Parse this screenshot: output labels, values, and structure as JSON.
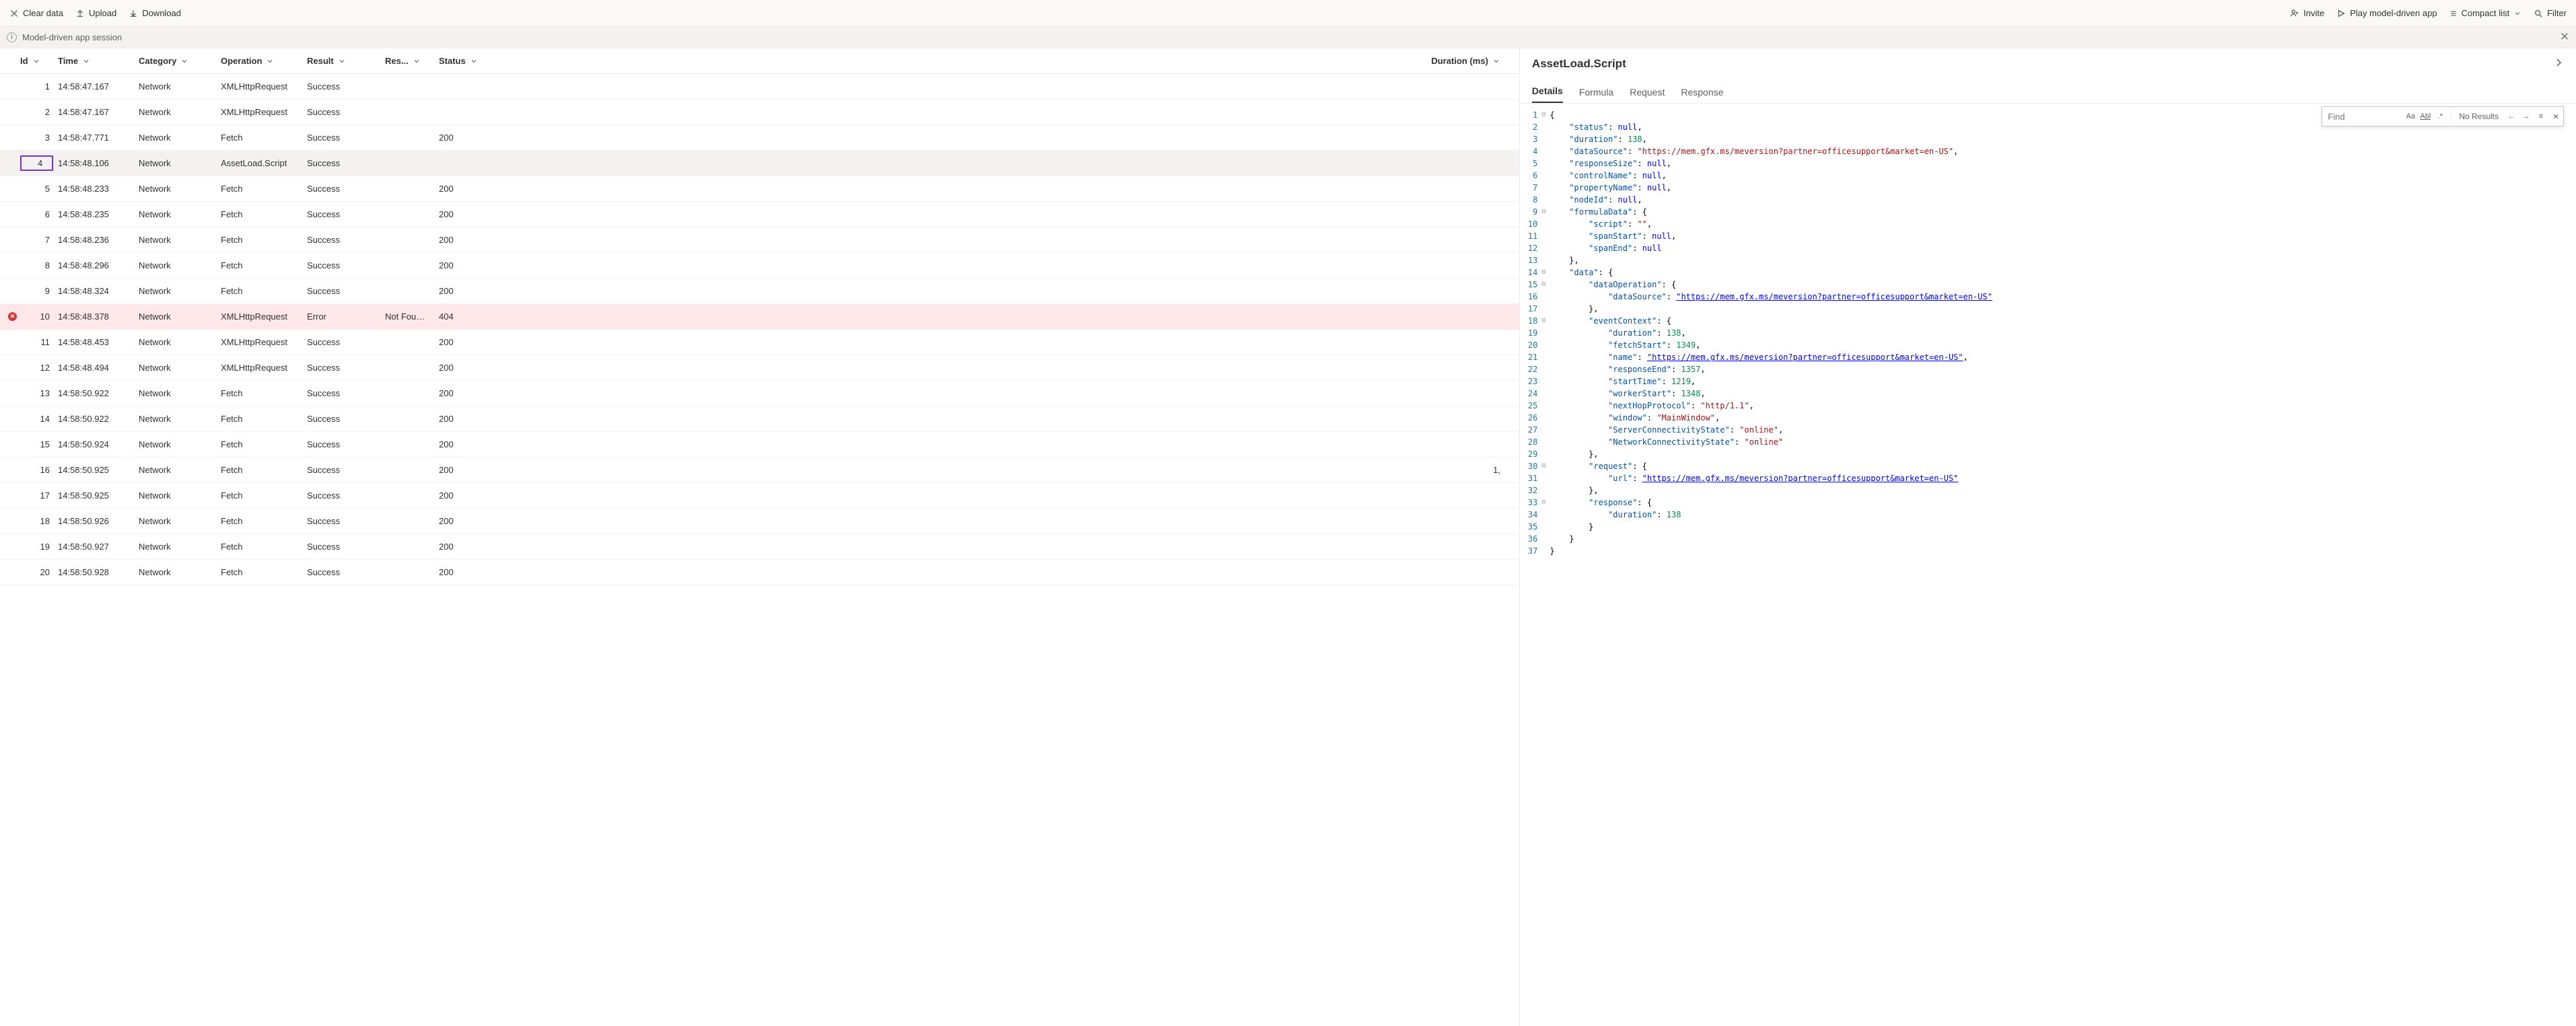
{
  "toolbar": {
    "clear": "Clear data",
    "upload": "Upload",
    "download": "Download",
    "invite": "Invite",
    "play": "Play model-driven app",
    "compact": "Compact list",
    "filter": "Filter"
  },
  "session": {
    "title": "Model-driven app session"
  },
  "columns": {
    "id": "Id",
    "time": "Time",
    "category": "Category",
    "operation": "Operation",
    "result": "Result",
    "res2": "Res...",
    "status": "Status",
    "duration": "Duration (ms)"
  },
  "rows": [
    {
      "id": "1",
      "time": "14:58:47.167",
      "cat": "Network",
      "op": "XMLHttpRequest",
      "res": "Success",
      "res2": "",
      "stat": "",
      "dur": ""
    },
    {
      "id": "2",
      "time": "14:58:47.167",
      "cat": "Network",
      "op": "XMLHttpRequest",
      "res": "Success",
      "res2": "",
      "stat": "",
      "dur": ""
    },
    {
      "id": "3",
      "time": "14:58:47.771",
      "cat": "Network",
      "op": "Fetch",
      "res": "Success",
      "res2": "",
      "stat": "200",
      "dur": ""
    },
    {
      "id": "4",
      "time": "14:58:48.106",
      "cat": "Network",
      "op": "AssetLoad.Script",
      "res": "Success",
      "res2": "",
      "stat": "",
      "dur": "",
      "selected": true
    },
    {
      "id": "5",
      "time": "14:58:48.233",
      "cat": "Network",
      "op": "Fetch",
      "res": "Success",
      "res2": "",
      "stat": "200",
      "dur": ""
    },
    {
      "id": "6",
      "time": "14:58:48.235",
      "cat": "Network",
      "op": "Fetch",
      "res": "Success",
      "res2": "",
      "stat": "200",
      "dur": ""
    },
    {
      "id": "7",
      "time": "14:58:48.236",
      "cat": "Network",
      "op": "Fetch",
      "res": "Success",
      "res2": "",
      "stat": "200",
      "dur": ""
    },
    {
      "id": "8",
      "time": "14:58:48.296",
      "cat": "Network",
      "op": "Fetch",
      "res": "Success",
      "res2": "",
      "stat": "200",
      "dur": ""
    },
    {
      "id": "9",
      "time": "14:58:48.324",
      "cat": "Network",
      "op": "Fetch",
      "res": "Success",
      "res2": "",
      "stat": "200",
      "dur": ""
    },
    {
      "id": "10",
      "time": "14:58:48.378",
      "cat": "Network",
      "op": "XMLHttpRequest",
      "res": "Error",
      "res2": "Not Fou…",
      "stat": "404",
      "dur": "",
      "error": true
    },
    {
      "id": "11",
      "time": "14:58:48.453",
      "cat": "Network",
      "op": "XMLHttpRequest",
      "res": "Success",
      "res2": "",
      "stat": "200",
      "dur": ""
    },
    {
      "id": "12",
      "time": "14:58:48.494",
      "cat": "Network",
      "op": "XMLHttpRequest",
      "res": "Success",
      "res2": "",
      "stat": "200",
      "dur": ""
    },
    {
      "id": "13",
      "time": "14:58:50.922",
      "cat": "Network",
      "op": "Fetch",
      "res": "Success",
      "res2": "",
      "stat": "200",
      "dur": ""
    },
    {
      "id": "14",
      "time": "14:58:50.922",
      "cat": "Network",
      "op": "Fetch",
      "res": "Success",
      "res2": "",
      "stat": "200",
      "dur": ""
    },
    {
      "id": "15",
      "time": "14:58:50.924",
      "cat": "Network",
      "op": "Fetch",
      "res": "Success",
      "res2": "",
      "stat": "200",
      "dur": ""
    },
    {
      "id": "16",
      "time": "14:58:50.925",
      "cat": "Network",
      "op": "Fetch",
      "res": "Success",
      "res2": "",
      "stat": "200",
      "dur": "1,"
    },
    {
      "id": "17",
      "time": "14:58:50.925",
      "cat": "Network",
      "op": "Fetch",
      "res": "Success",
      "res2": "",
      "stat": "200",
      "dur": ""
    },
    {
      "id": "18",
      "time": "14:58:50.926",
      "cat": "Network",
      "op": "Fetch",
      "res": "Success",
      "res2": "",
      "stat": "200",
      "dur": ""
    },
    {
      "id": "19",
      "time": "14:58:50.927",
      "cat": "Network",
      "op": "Fetch",
      "res": "Success",
      "res2": "",
      "stat": "200",
      "dur": ""
    },
    {
      "id": "20",
      "time": "14:58:50.928",
      "cat": "Network",
      "op": "Fetch",
      "res": "Success",
      "res2": "",
      "stat": "200",
      "dur": ""
    }
  ],
  "details": {
    "title": "AssetLoad.Script",
    "tabs": {
      "details": "Details",
      "formula": "Formula",
      "request": "Request",
      "response": "Response"
    },
    "find": {
      "placeholder": "Find",
      "nores": "No Results"
    },
    "code": [
      {
        "n": 1,
        "fold": "-",
        "t": [
          [
            "p",
            "{"
          ]
        ]
      },
      {
        "n": 2,
        "t": [
          [
            "p",
            "    "
          ],
          [
            "k",
            "\"status\""
          ],
          [
            "p",
            ": "
          ],
          [
            "nl",
            "null"
          ],
          [
            "p",
            ","
          ]
        ]
      },
      {
        "n": 3,
        "t": [
          [
            "p",
            "    "
          ],
          [
            "k",
            "\"duration\""
          ],
          [
            "p",
            ": "
          ],
          [
            "n",
            "138"
          ],
          [
            "p",
            ","
          ]
        ]
      },
      {
        "n": 4,
        "t": [
          [
            "p",
            "    "
          ],
          [
            "k",
            "\"dataSource\""
          ],
          [
            "p",
            ": "
          ],
          [
            "s",
            "\"https://mem.gfx.ms/meversion?partner=officesupport&market=en-US\""
          ],
          [
            "p",
            ","
          ]
        ]
      },
      {
        "n": 5,
        "t": [
          [
            "p",
            "    "
          ],
          [
            "k",
            "\"responseSize\""
          ],
          [
            "p",
            ": "
          ],
          [
            "nl",
            "null"
          ],
          [
            "p",
            ","
          ]
        ]
      },
      {
        "n": 6,
        "t": [
          [
            "p",
            "    "
          ],
          [
            "k",
            "\"controlName\""
          ],
          [
            "p",
            ": "
          ],
          [
            "nl",
            "null"
          ],
          [
            "p",
            ","
          ]
        ]
      },
      {
        "n": 7,
        "t": [
          [
            "p",
            "    "
          ],
          [
            "k",
            "\"propertyName\""
          ],
          [
            "p",
            ": "
          ],
          [
            "nl",
            "null"
          ],
          [
            "p",
            ","
          ]
        ]
      },
      {
        "n": 8,
        "t": [
          [
            "p",
            "    "
          ],
          [
            "k",
            "\"nodeId\""
          ],
          [
            "p",
            ": "
          ],
          [
            "nl",
            "null"
          ],
          [
            "p",
            ","
          ]
        ]
      },
      {
        "n": 9,
        "fold": "-",
        "t": [
          [
            "p",
            "    "
          ],
          [
            "k",
            "\"formulaData\""
          ],
          [
            "p",
            ": {"
          ]
        ]
      },
      {
        "n": 10,
        "t": [
          [
            "p",
            "        "
          ],
          [
            "k",
            "\"script\""
          ],
          [
            "p",
            ": "
          ],
          [
            "s",
            "\"\""
          ],
          [
            "p",
            ","
          ]
        ]
      },
      {
        "n": 11,
        "t": [
          [
            "p",
            "        "
          ],
          [
            "k",
            "\"spanStart\""
          ],
          [
            "p",
            ": "
          ],
          [
            "nl",
            "null"
          ],
          [
            "p",
            ","
          ]
        ]
      },
      {
        "n": 12,
        "t": [
          [
            "p",
            "        "
          ],
          [
            "k",
            "\"spanEnd\""
          ],
          [
            "p",
            ": "
          ],
          [
            "nl",
            "null"
          ]
        ]
      },
      {
        "n": 13,
        "t": [
          [
            "p",
            "    },"
          ]
        ]
      },
      {
        "n": 14,
        "fold": "-",
        "t": [
          [
            "p",
            "    "
          ],
          [
            "k",
            "\"data\""
          ],
          [
            "p",
            ": {"
          ]
        ]
      },
      {
        "n": 15,
        "fold": "-",
        "t": [
          [
            "p",
            "        "
          ],
          [
            "k",
            "\"dataOperation\""
          ],
          [
            "p",
            ": {"
          ]
        ]
      },
      {
        "n": 16,
        "t": [
          [
            "p",
            "            "
          ],
          [
            "k",
            "\"dataSource\""
          ],
          [
            "p",
            ": "
          ],
          [
            "u",
            "\"https://mem.gfx.ms/meversion?partner=officesupport&market=en-US\""
          ]
        ]
      },
      {
        "n": 17,
        "t": [
          [
            "p",
            "        },"
          ]
        ]
      },
      {
        "n": 18,
        "fold": "-",
        "t": [
          [
            "p",
            "        "
          ],
          [
            "k",
            "\"eventContext\""
          ],
          [
            "p",
            ": {"
          ]
        ]
      },
      {
        "n": 19,
        "t": [
          [
            "p",
            "            "
          ],
          [
            "k",
            "\"duration\""
          ],
          [
            "p",
            ": "
          ],
          [
            "n",
            "138"
          ],
          [
            "p",
            ","
          ]
        ]
      },
      {
        "n": 20,
        "t": [
          [
            "p",
            "            "
          ],
          [
            "k",
            "\"fetchStart\""
          ],
          [
            "p",
            ": "
          ],
          [
            "n",
            "1349"
          ],
          [
            "p",
            ","
          ]
        ]
      },
      {
        "n": 21,
        "t": [
          [
            "p",
            "            "
          ],
          [
            "k",
            "\"name\""
          ],
          [
            "p",
            ": "
          ],
          [
            "u",
            "\"https://mem.gfx.ms/meversion?partner=officesupport&market=en-US\""
          ],
          [
            "p",
            ","
          ]
        ]
      },
      {
        "n": 22,
        "t": [
          [
            "p",
            "            "
          ],
          [
            "k",
            "\"responseEnd\""
          ],
          [
            "p",
            ": "
          ],
          [
            "n",
            "1357"
          ],
          [
            "p",
            ","
          ]
        ]
      },
      {
        "n": 23,
        "t": [
          [
            "p",
            "            "
          ],
          [
            "k",
            "\"startTime\""
          ],
          [
            "p",
            ": "
          ],
          [
            "n",
            "1219"
          ],
          [
            "p",
            ","
          ]
        ]
      },
      {
        "n": 24,
        "t": [
          [
            "p",
            "            "
          ],
          [
            "k",
            "\"workerStart\""
          ],
          [
            "p",
            ": "
          ],
          [
            "n",
            "1348"
          ],
          [
            "p",
            ","
          ]
        ]
      },
      {
        "n": 25,
        "t": [
          [
            "p",
            "            "
          ],
          [
            "k",
            "\"nextHopProtocol\""
          ],
          [
            "p",
            ": "
          ],
          [
            "s",
            "\"http/1.1\""
          ],
          [
            "p",
            ","
          ]
        ]
      },
      {
        "n": 26,
        "t": [
          [
            "p",
            "            "
          ],
          [
            "k",
            "\"window\""
          ],
          [
            "p",
            ": "
          ],
          [
            "s",
            "\"MainWindow\""
          ],
          [
            "p",
            ","
          ]
        ]
      },
      {
        "n": 27,
        "t": [
          [
            "p",
            "            "
          ],
          [
            "k",
            "\"ServerConnectivityState\""
          ],
          [
            "p",
            ": "
          ],
          [
            "s",
            "\"online\""
          ],
          [
            "p",
            ","
          ]
        ]
      },
      {
        "n": 28,
        "t": [
          [
            "p",
            "            "
          ],
          [
            "k",
            "\"NetworkConnectivityState\""
          ],
          [
            "p",
            ": "
          ],
          [
            "s",
            "\"online\""
          ]
        ]
      },
      {
        "n": 29,
        "t": [
          [
            "p",
            "        },"
          ]
        ]
      },
      {
        "n": 30,
        "fold": "-",
        "t": [
          [
            "p",
            "        "
          ],
          [
            "k",
            "\"request\""
          ],
          [
            "p",
            ": {"
          ]
        ]
      },
      {
        "n": 31,
        "t": [
          [
            "p",
            "            "
          ],
          [
            "k",
            "\"url\""
          ],
          [
            "p",
            ": "
          ],
          [
            "u",
            "\"https://mem.gfx.ms/meversion?partner=officesupport&market=en-US\""
          ]
        ]
      },
      {
        "n": 32,
        "t": [
          [
            "p",
            "        },"
          ]
        ]
      },
      {
        "n": 33,
        "fold": "-",
        "t": [
          [
            "p",
            "        "
          ],
          [
            "k",
            "\"response\""
          ],
          [
            "p",
            ": {"
          ]
        ]
      },
      {
        "n": 34,
        "t": [
          [
            "p",
            "            "
          ],
          [
            "k",
            "\"duration\""
          ],
          [
            "p",
            ": "
          ],
          [
            "n",
            "138"
          ]
        ]
      },
      {
        "n": 35,
        "t": [
          [
            "p",
            "        }"
          ]
        ]
      },
      {
        "n": 36,
        "t": [
          [
            "p",
            "    }"
          ]
        ]
      },
      {
        "n": 37,
        "t": [
          [
            "p",
            "}"
          ]
        ]
      }
    ]
  }
}
